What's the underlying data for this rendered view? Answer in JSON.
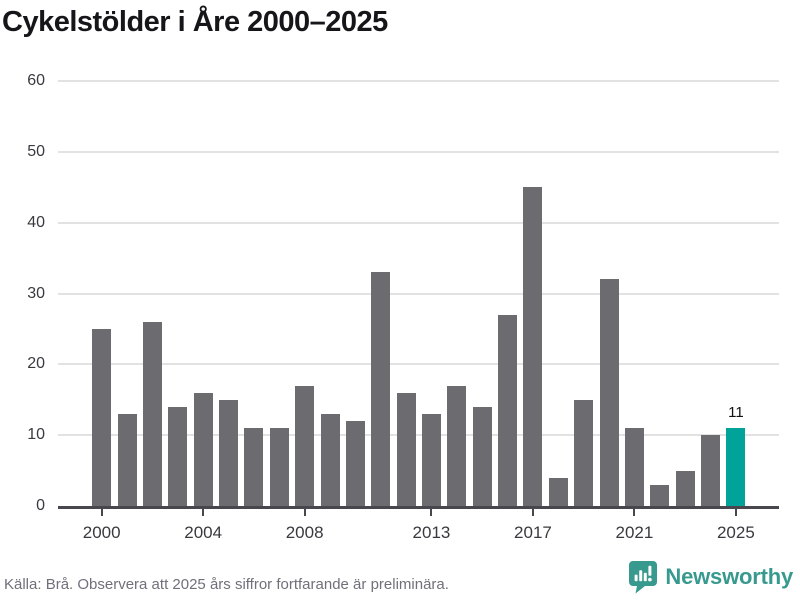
{
  "title": "Cykelstölder i Åre 2000–2025",
  "chart_data": {
    "type": "bar",
    "title": "Cykelstölder i Åre 2000–2025",
    "categories": [
      2000,
      2001,
      2002,
      2003,
      2004,
      2005,
      2006,
      2007,
      2008,
      2009,
      2010,
      2011,
      2012,
      2013,
      2014,
      2015,
      2016,
      2017,
      2018,
      2019,
      2020,
      2021,
      2022,
      2023,
      2024,
      2025
    ],
    "values": [
      25,
      13,
      26,
      14,
      16,
      15,
      11,
      11,
      17,
      13,
      12,
      33,
      16,
      13,
      17,
      14,
      27,
      45,
      4,
      15,
      32,
      11,
      3,
      5,
      10,
      11
    ],
    "xlabel": "",
    "ylabel": "",
    "ylim": [
      0,
      60
    ],
    "yticks": [
      0,
      10,
      20,
      30,
      40,
      50,
      60
    ],
    "xticks": [
      2000,
      2004,
      2008,
      2013,
      2017,
      2021,
      2025
    ],
    "grid": true,
    "legend": "none",
    "bar_color": "#6c6b70",
    "highlight_color": "#00a39a",
    "highlight_category": 2025,
    "highlight_label": "11"
  },
  "footer": {
    "source_note": "Källa: Brå. Observera att 2025 års siffror fortfarande är preliminära.",
    "brand": "Newsworthy",
    "brand_color": "#38998e",
    "brand_icon": "speech-bubble-bar-chart-icon"
  }
}
